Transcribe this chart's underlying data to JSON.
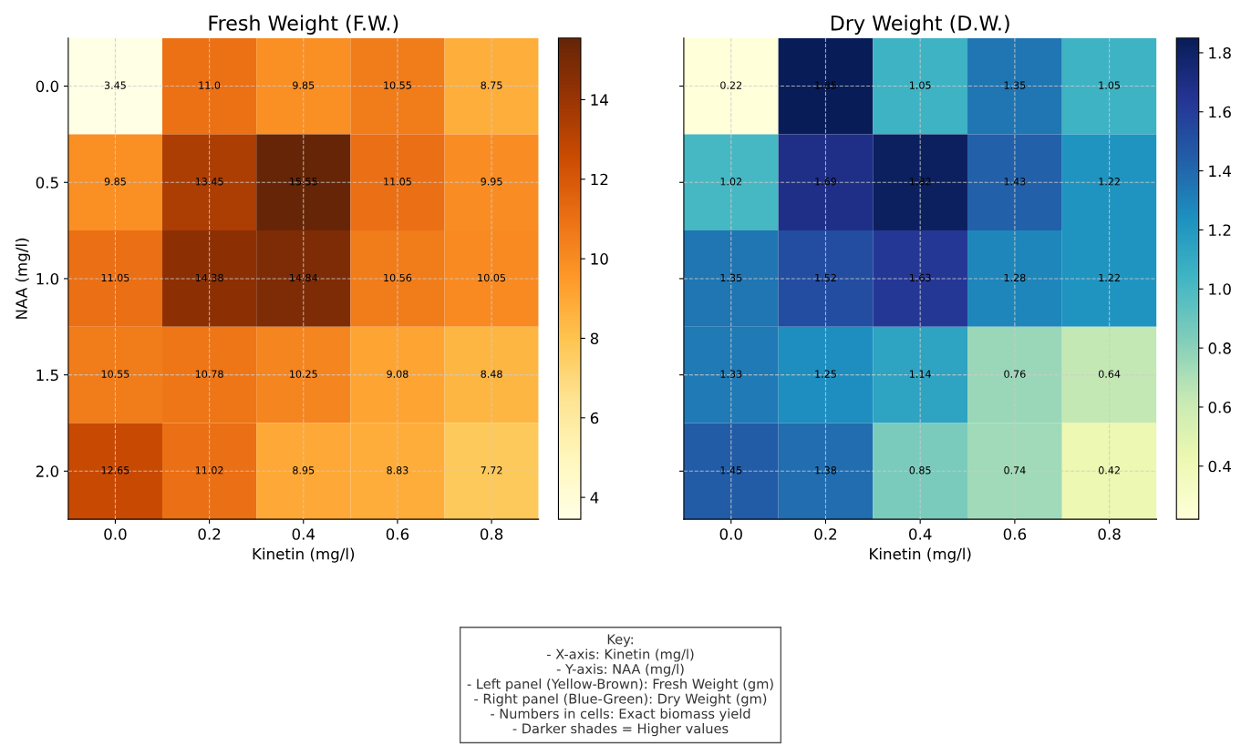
{
  "chart_data": [
    {
      "type": "heatmap",
      "title": "Fresh Weight (F.W.)",
      "xlabel": "Kinetin (mg/l)",
      "ylabel": "NAA (mg/l)",
      "categories": [
        "0.0",
        "0.2",
        "0.4",
        "0.6",
        "0.8"
      ],
      "y_categories": [
        "0.0",
        "0.5",
        "1.0",
        "1.5",
        "2.0"
      ],
      "cells": [
        [
          3.45,
          11.0,
          9.85,
          10.55,
          8.75
        ],
        [
          9.85,
          13.45,
          15.55,
          11.05,
          9.95
        ],
        [
          11.05,
          14.38,
          14.84,
          10.56,
          10.05
        ],
        [
          10.55,
          10.78,
          10.25,
          9.08,
          8.48
        ],
        [
          12.65,
          11.02,
          8.95,
          8.83,
          7.72
        ]
      ],
      "cell_labels": [
        [
          "3.45",
          "11.0",
          "9.85",
          "10.55",
          "8.75"
        ],
        [
          "9.85",
          "13.45",
          "15.55",
          "11.05",
          "9.95"
        ],
        [
          "11.05",
          "14.38",
          "14.84",
          "10.56",
          "10.05"
        ],
        [
          "10.55",
          "10.78",
          "10.25",
          "9.08",
          "8.48"
        ],
        [
          "12.65",
          "11.02",
          "8.95",
          "8.83",
          "7.72"
        ]
      ],
      "clim": [
        3.45,
        15.55
      ],
      "cticks": [
        4,
        6,
        8,
        10,
        12,
        14
      ],
      "grid": true,
      "annotations": [
        "Key:\n- X-axis: Kinetin (mg/l)\n- Y-axis: NAA (mg/l)\n- Left panel (Yellow-Brown): Fresh Weight (gm)\n- Right panel (Blue-Green): Dry Weight (gm)\n- Numbers in cells: Exact biomass yield\n- Darker shades = Higher values"
      ]
    },
    {
      "type": "heatmap",
      "title": "Dry Weight (D.W.)",
      "xlabel": "Kinetin (mg/l)",
      "categories": [
        "0.0",
        "0.2",
        "0.4",
        "0.6",
        "0.8"
      ],
      "y_categories": [
        "0.0",
        "0.5",
        "1.0",
        "1.5",
        "2.0"
      ],
      "cells": [
        [
          0.22,
          1.85,
          1.05,
          1.35,
          1.05
        ],
        [
          1.02,
          1.69,
          1.82,
          1.43,
          1.22
        ],
        [
          1.35,
          1.52,
          1.63,
          1.28,
          1.22
        ],
        [
          1.33,
          1.25,
          1.14,
          0.76,
          0.64
        ],
        [
          1.45,
          1.38,
          0.85,
          0.74,
          0.42
        ]
      ],
      "cell_labels": [
        [
          "0.22",
          "1.85",
          "1.05",
          "1.35",
          "1.05"
        ],
        [
          "1.02",
          "1.69",
          "1.82",
          "1.43",
          "1.22"
        ],
        [
          "1.35",
          "1.52",
          "1.63",
          "1.28",
          "1.22"
        ],
        [
          "1.33",
          "1.25",
          "1.14",
          "0.76",
          "0.64"
        ],
        [
          "1.45",
          "1.38",
          "0.85",
          "0.74",
          "0.42"
        ]
      ],
      "clim": [
        0.22,
        1.85
      ],
      "cticks": [
        0.4,
        0.6,
        0.8,
        {
          "value": 1,
          "label": "1.0"
        },
        1.2,
        1.4,
        1.6,
        1.8
      ],
      "grid": true,
      "tick_labels": "x"
    }
  ]
}
